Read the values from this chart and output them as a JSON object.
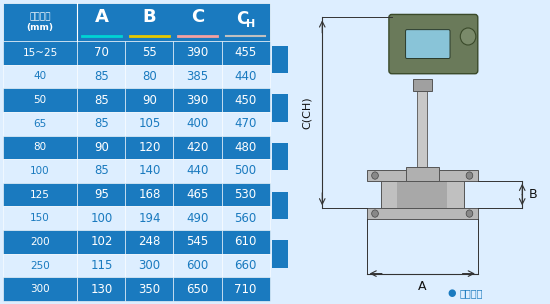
{
  "col_headers": [
    "仪表口径\n(mm)",
    "A",
    "B",
    "C",
    "CH"
  ],
  "col_underline_colors": [
    "none",
    "#00d4d4",
    "#e6c800",
    "#f5a0a0",
    "#c0c0c0"
  ],
  "rows": [
    [
      "15~25",
      "70",
      "55",
      "390",
      "455"
    ],
    [
      "40",
      "85",
      "80",
      "385",
      "440"
    ],
    [
      "50",
      "85",
      "90",
      "390",
      "450"
    ],
    [
      "65",
      "85",
      "105",
      "400",
      "470"
    ],
    [
      "80",
      "90",
      "120",
      "420",
      "480"
    ],
    [
      "100",
      "85",
      "140",
      "440",
      "500"
    ],
    [
      "125",
      "95",
      "168",
      "465",
      "530"
    ],
    [
      "150",
      "100",
      "194",
      "490",
      "560"
    ],
    [
      "200",
      "102",
      "248",
      "545",
      "610"
    ],
    [
      "250",
      "115",
      "300",
      "600",
      "660"
    ],
    [
      "300",
      "130",
      "350",
      "650",
      "710"
    ]
  ],
  "row_bg_dark": "#1a7abf",
  "row_bg_light": "#ddeeff",
  "header_bg": "#1a7abf",
  "text_color_dark": "#ffffff",
  "text_color_light": "#1a7abf",
  "border_color": "#ffffff",
  "note_text": "常规仪表",
  "note_color": "#1a7abf",
  "background_color": "#ddeeff",
  "arrow_color": "#333333",
  "dim_line_color": "#333333",
  "blue_stripe_color": "#1a7abf"
}
